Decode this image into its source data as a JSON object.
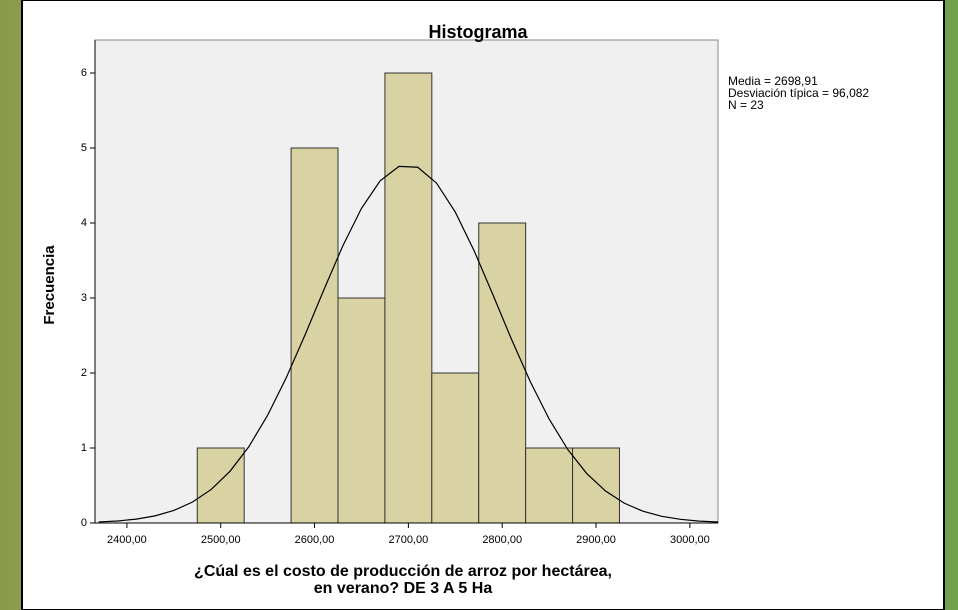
{
  "chart_data": {
    "type": "histogram",
    "title": "Histograma",
    "bins": [
      2475,
      2525,
      2575,
      2625,
      2675,
      2725,
      2775,
      2825,
      2875,
      2925
    ],
    "values": [
      1,
      0,
      5,
      3,
      6,
      2,
      4,
      1,
      1
    ],
    "color": "#d9d3a3",
    "xlabel": [
      "¿Cúal es el costo de producción de arroz por hectárea,",
      "en verano?  DE 3 A 5 Ha"
    ],
    "ylabel": "Frecuencia",
    "xlim": [
      2366,
      3030
    ],
    "ylim": [
      0,
      6.44
    ],
    "xticks": [
      {
        "value": 2400,
        "label": "2400,00"
      },
      {
        "value": 2500,
        "label": "2500,00"
      },
      {
        "value": 2600,
        "label": "2600,00"
      },
      {
        "value": 2700,
        "label": "2700,00"
      },
      {
        "value": 2800,
        "label": "2800,00"
      },
      {
        "value": 2900,
        "label": "2900,00"
      },
      {
        "value": 3000,
        "label": "3000,00"
      }
    ],
    "yticks": [
      0,
      1,
      2,
      3,
      4,
      5,
      6
    ],
    "stats": [
      "Media = 2698,91",
      "Desviación típica = 96,082",
      "N = 23"
    ],
    "curve": {
      "x": [
        2370,
        2390,
        2410,
        2430,
        2450,
        2470,
        2490,
        2510,
        2530,
        2550,
        2570,
        2590,
        2610,
        2630,
        2650,
        2670,
        2690,
        2710,
        2730,
        2750,
        2770,
        2790,
        2810,
        2830,
        2850,
        2870,
        2890,
        2910,
        2930,
        2950,
        2970,
        2990,
        3010,
        3030
      ],
      "values": [
        0.014,
        0.027,
        0.052,
        0.095,
        0.167,
        0.28,
        0.449,
        0.691,
        1.018,
        1.437,
        1.941,
        2.512,
        3.112,
        3.692,
        4.195,
        4.564,
        4.755,
        4.743,
        4.532,
        4.146,
        3.632,
        3.047,
        2.447,
        1.883,
        1.387,
        0.978,
        0.661,
        0.428,
        0.265,
        0.157,
        0.089,
        0.049,
        0.025,
        0.013
      ]
    }
  }
}
